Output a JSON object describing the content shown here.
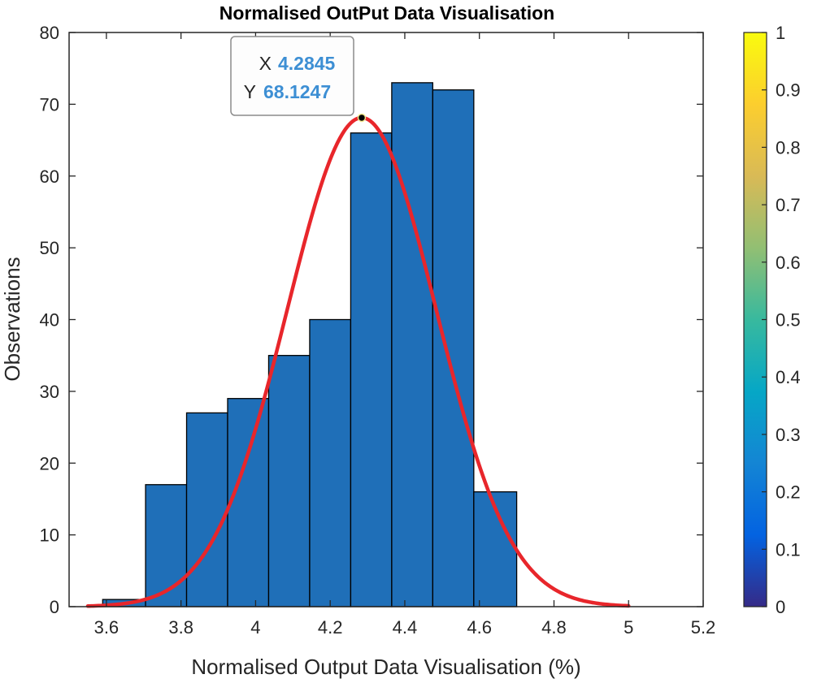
{
  "chart_data": {
    "type": "bar",
    "title": "Normalised OutPut Data Visualisation",
    "xlabel": "Normalised Output Data Visualisation (%)",
    "ylabel": "Observations",
    "xlim": [
      3.5,
      5.2
    ],
    "ylim": [
      0,
      80
    ],
    "xticks": [
      3.6,
      3.8,
      4,
      4.2,
      4.4,
      4.6,
      4.8,
      5,
      5.2
    ],
    "xtick_labels": [
      "3.6",
      "3.8",
      "4",
      "4.2",
      "4.4",
      "4.6",
      "4.8",
      "5",
      "5.2"
    ],
    "yticks": [
      0,
      10,
      20,
      30,
      40,
      50,
      60,
      70,
      80
    ],
    "ytick_labels": [
      "0",
      "10",
      "20",
      "30",
      "40",
      "50",
      "60",
      "70",
      "80"
    ],
    "bin_edges": [
      3.59,
      3.705,
      3.815,
      3.925,
      4.035,
      4.145,
      4.255,
      4.365,
      4.475,
      4.585,
      4.7
    ],
    "counts": [
      1,
      17,
      27,
      29,
      35,
      40,
      66,
      73,
      72,
      16
    ],
    "bar_color": "#1f6fb8",
    "fit_curve": {
      "type": "normal",
      "mean": 4.2845,
      "peak": 68.1247,
      "sigma": 0.2,
      "x_range": [
        3.55,
        5.0
      ],
      "color": "#e8262b"
    },
    "datatip": {
      "x_label": "X",
      "x_value": "4.2845",
      "y_label": "Y",
      "y_value": "68.1247",
      "x": 4.2845,
      "y": 68.1247
    },
    "colorbar": {
      "colormap": "parula",
      "range": [
        0,
        1
      ],
      "ticks": [
        0,
        0.1,
        0.2,
        0.3,
        0.4,
        0.5,
        0.6,
        0.7,
        0.8,
        0.9,
        1
      ],
      "tick_labels": [
        "0",
        "0.1",
        "0.2",
        "0.3",
        "0.4",
        "0.5",
        "0.6",
        "0.7",
        "0.8",
        "0.9",
        "1"
      ],
      "colors": [
        "#352a87",
        "#0363e1",
        "#1485d4",
        "#06a7c6",
        "#38b99e",
        "#92bf73",
        "#d9ba56",
        "#fcce2e",
        "#f9fb0e"
      ]
    }
  }
}
